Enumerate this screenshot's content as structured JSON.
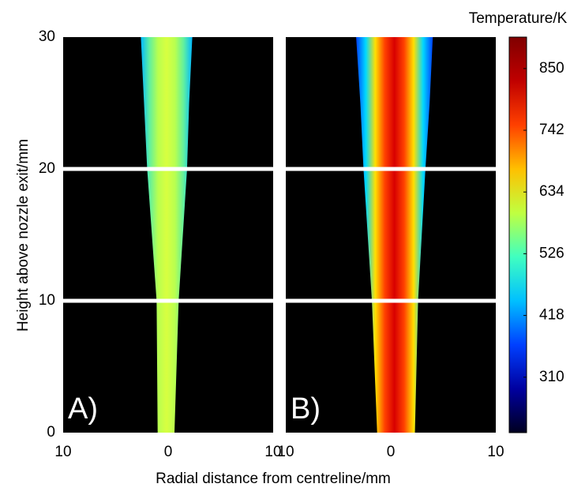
{
  "chart_data": {
    "type": "heatmap",
    "ylabel": "Height above nozzle exit/mm",
    "xlabel": "Radial distance from centreline/mm",
    "xlim": [
      -10,
      10
    ],
    "xticks": [
      {
        "value": -10,
        "label": "10"
      },
      0,
      10
    ],
    "ylim": [
      0,
      30
    ],
    "yticks": [
      0,
      10,
      20,
      30
    ],
    "panels": [
      {
        "label": "A)",
        "colors": [
          "#00b8ff",
          "#60f0a0",
          "#b8ff50",
          "#d8ff40",
          "#b8ff50",
          "#60f0a0",
          "#00b8ff"
        ]
      },
      {
        "label": "B)",
        "colors": [
          "#0040ff",
          "#00d8ff",
          "#ffe000",
          "#ff4000",
          "#d80000",
          "#ff4000",
          "#ffe000",
          "#00d8ff",
          "#0040ff"
        ]
      }
    ],
    "colorbar": {
      "label": "Temperature/K",
      "lim": [
        213,
        905
      ],
      "ticks": [
        310,
        418,
        526,
        634,
        742,
        850
      ],
      "colors": [
        "#000020",
        "#0000a0",
        "#0040ff",
        "#00c0ff",
        "#40ffc0",
        "#c0ff40",
        "#ffc000",
        "#ff4000",
        "#c00000",
        "#800000"
      ]
    }
  }
}
